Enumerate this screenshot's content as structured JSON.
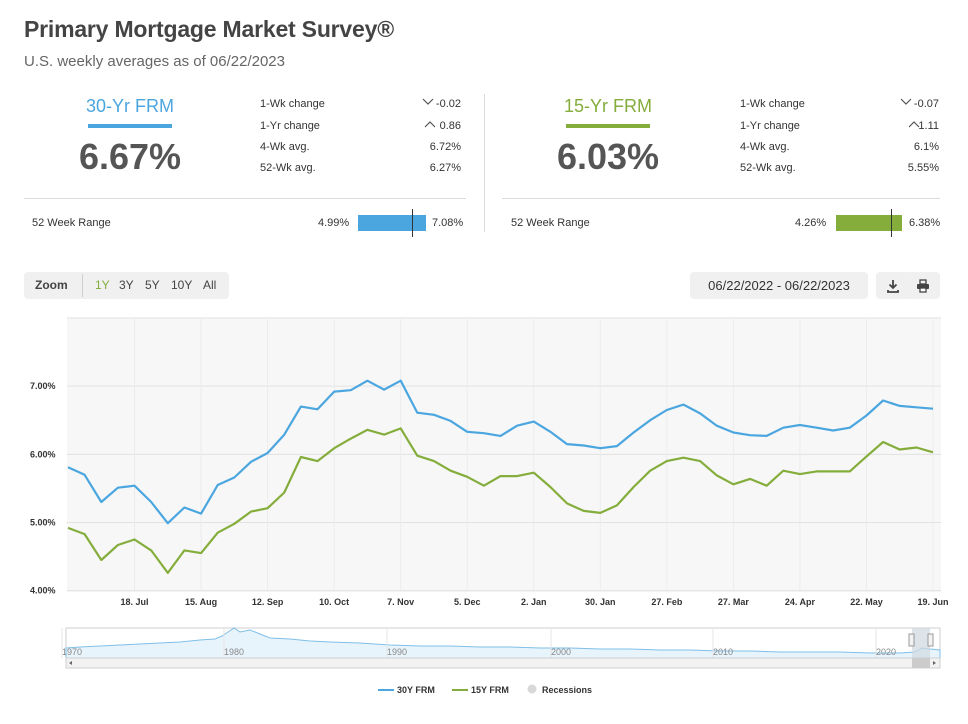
{
  "header": {
    "title": "Primary Mortgage Market Survey®",
    "subtitle": "U.S. weekly averages as of 06/22/2023"
  },
  "colors": {
    "frm30": "#4ba6e0",
    "frm15": "#84ad3c",
    "grid": "#e6e6e6"
  },
  "frm30": {
    "label": "30-Yr FRM",
    "rate": "6.67%",
    "stats": [
      {
        "label": "1-Wk change",
        "value": "-0.02",
        "icon": "caret-down-icon"
      },
      {
        "label": "1-Yr change",
        "value": "0.86",
        "icon": "caret-up-icon"
      },
      {
        "label": "4-Wk avg.",
        "value": "6.72%"
      },
      {
        "label": "52-Wk avg.",
        "value": "6.27%"
      }
    ],
    "range_label": "52 Week Range",
    "range_low": "4.99%",
    "range_high": "7.08%",
    "range_current_fraction": 0.8
  },
  "frm15": {
    "label": "15-Yr FRM",
    "rate": "6.03%",
    "stats": [
      {
        "label": "1-Wk change",
        "value": "-0.07",
        "icon": "caret-down-icon"
      },
      {
        "label": "1-Yr change",
        "value": "1.11",
        "icon": "caret-up-icon"
      },
      {
        "label": "4-Wk avg.",
        "value": "6.1%"
      },
      {
        "label": "52-Wk avg.",
        "value": "5.55%"
      }
    ],
    "range_label": "52 Week Range",
    "range_low": "4.26%",
    "range_high": "6.38%",
    "range_current_fraction": 0.83
  },
  "toolbar": {
    "zoom_label": "Zoom",
    "zoom_options": [
      "1Y",
      "3Y",
      "5Y",
      "10Y",
      "All"
    ],
    "zoom_selected": "1Y",
    "date_range": "06/22/2022 - 06/22/2023",
    "download_icon": "download-icon",
    "print_icon": "print-icon"
  },
  "chart_data": {
    "type": "line",
    "x_ticks": [
      "18. Jul",
      "15. Aug",
      "12. Sep",
      "10. Oct",
      "7. Nov",
      "5. Dec",
      "2. Jan",
      "30. Jan",
      "27. Feb",
      "27. Mar",
      "24. Apr",
      "22. May",
      "19. Jun"
    ],
    "y_ticks": [
      "4.00%",
      "5.00%",
      "6.00%",
      "7.00%"
    ],
    "ylim": [
      3.98,
      8.0
    ],
    "x_start_date": "2022-06-23",
    "grid": true,
    "series": [
      {
        "name": "30Y FRM",
        "color": "#4ba6e0",
        "values": [
          5.81,
          5.7,
          5.3,
          5.51,
          5.54,
          5.3,
          4.99,
          5.22,
          5.13,
          5.55,
          5.66,
          5.89,
          6.02,
          6.29,
          6.7,
          6.66,
          6.92,
          6.94,
          7.08,
          6.95,
          7.08,
          6.61,
          6.58,
          6.49,
          6.33,
          6.31,
          6.27,
          6.42,
          6.48,
          6.33,
          6.15,
          6.13,
          6.09,
          6.12,
          6.32,
          6.5,
          6.65,
          6.73,
          6.6,
          6.42,
          6.32,
          6.28,
          6.27,
          6.39,
          6.43,
          6.39,
          6.35,
          6.39,
          6.57,
          6.79,
          6.71,
          6.69,
          6.67
        ]
      },
      {
        "name": "15Y FRM",
        "color": "#84ad3c",
        "values": [
          4.92,
          4.83,
          4.45,
          4.67,
          4.75,
          4.59,
          4.26,
          4.59,
          4.55,
          4.85,
          4.98,
          5.16,
          5.21,
          5.44,
          5.96,
          5.9,
          6.09,
          6.23,
          6.36,
          6.29,
          6.38,
          5.98,
          5.9,
          5.76,
          5.67,
          5.54,
          5.68,
          5.68,
          5.73,
          5.52,
          5.28,
          5.17,
          5.14,
          5.25,
          5.52,
          5.76,
          5.9,
          5.95,
          5.9,
          5.69,
          5.56,
          5.64,
          5.54,
          5.76,
          5.71,
          5.75,
          5.75,
          5.75,
          5.97,
          6.18,
          6.07,
          6.1,
          6.03
        ]
      }
    ],
    "navigator": {
      "x_labels": [
        "1970",
        "1980",
        "1990",
        "2000",
        "2010",
        "2020"
      ]
    },
    "legend": [
      {
        "name": "30Y FRM",
        "color": "#4ba6e0"
      },
      {
        "name": "15Y FRM",
        "color": "#84ad3c"
      },
      {
        "name": "Recessions",
        "color": "#d8d8d8"
      }
    ]
  }
}
